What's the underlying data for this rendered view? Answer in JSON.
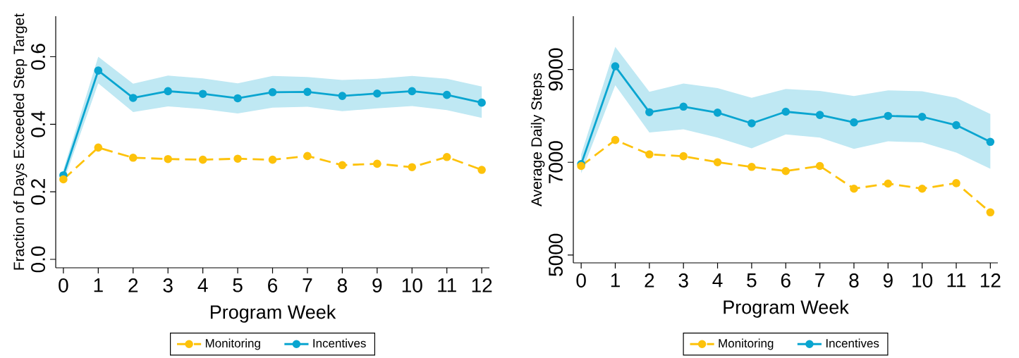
{
  "chart_data": [
    {
      "type": "line",
      "xlabel": "Program Week",
      "ylabel": "Fraction of Days Exceeded Step Target",
      "x": [
        0,
        1,
        2,
        3,
        4,
        5,
        6,
        7,
        8,
        9,
        10,
        11,
        12
      ],
      "xlim": [
        -0.22,
        12.22
      ],
      "ylim": [
        -0.025,
        0.72
      ],
      "xticks": [
        0,
        1,
        2,
        3,
        4,
        5,
        6,
        7,
        8,
        9,
        10,
        11,
        12
      ],
      "yticks": [
        {
          "value": 0,
          "label": "0.0"
        },
        0.2,
        0.4,
        0.6
      ],
      "legend": "bottom",
      "marker": "circle",
      "series": [
        {
          "name": "Monitoring",
          "color": "#fdc20b",
          "line_style": "dashed",
          "values": [
            0.237,
            0.331,
            0.301,
            0.297,
            0.295,
            0.298,
            0.295,
            0.306,
            0.279,
            0.283,
            0.273,
            0.303,
            0.265
          ]
        },
        {
          "name": "Incentives",
          "color": "#0aa5d0",
          "line_style": "solid",
          "values": [
            0.249,
            0.559,
            0.478,
            0.498,
            0.49,
            0.477,
            0.495,
            0.496,
            0.484,
            0.491,
            0.498,
            0.487,
            0.464
          ],
          "lower": [
            0.229,
            0.521,
            0.436,
            0.453,
            0.445,
            0.432,
            0.449,
            0.452,
            0.439,
            0.447,
            0.454,
            0.442,
            0.419
          ],
          "upper": [
            0.265,
            0.6,
            0.52,
            0.544,
            0.536,
            0.521,
            0.543,
            0.54,
            0.531,
            0.535,
            0.543,
            0.535,
            0.512
          ]
        }
      ]
    },
    {
      "type": "line",
      "xlabel": "Program Week",
      "ylabel": "Average Daily Steps",
      "x": [
        0,
        1,
        2,
        3,
        4,
        5,
        6,
        7,
        8,
        9,
        10,
        11,
        12
      ],
      "xlim": [
        -0.23,
        12.22
      ],
      "ylim": [
        4830,
        10150
      ],
      "xticks": [
        0,
        1,
        2,
        3,
        4,
        5,
        6,
        7,
        8,
        9,
        10,
        11,
        12
      ],
      "yticks": [
        5000,
        7000,
        9000
      ],
      "legend": "bottom",
      "marker": "circle",
      "series": [
        {
          "name": "Monitoring",
          "color": "#fdc20b",
          "line_style": "dashed",
          "values": [
            6920,
            7480,
            7170,
            7130,
            7000,
            6900,
            6810,
            6920,
            6430,
            6540,
            6430,
            6550,
            5920
          ]
        },
        {
          "name": "Incentives",
          "color": "#0aa5d0",
          "line_style": "solid",
          "values": [
            6960,
            9070,
            8080,
            8200,
            8070,
            7840,
            8090,
            8020,
            7860,
            8000,
            7980,
            7800,
            7440
          ],
          "lower": [
            6760,
            8660,
            7640,
            7710,
            7530,
            7300,
            7600,
            7530,
            7290,
            7450,
            7430,
            7210,
            6860
          ],
          "upper": [
            7170,
            9490,
            8520,
            8700,
            8600,
            8390,
            8580,
            8540,
            8430,
            8550,
            8530,
            8390,
            8040
          ]
        }
      ]
    }
  ]
}
